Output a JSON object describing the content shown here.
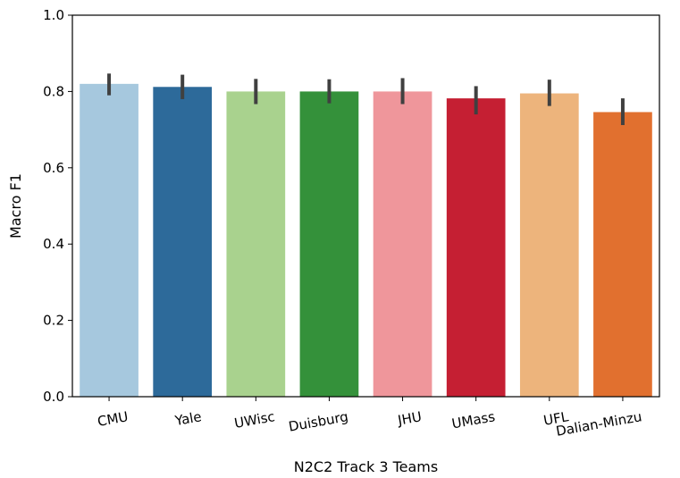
{
  "chart_data": {
    "type": "bar",
    "title": "",
    "xlabel": "N2C2 Track 3 Teams",
    "ylabel": "Macro F1",
    "ylim": [
      0,
      1.0
    ],
    "yticks": [
      "0.0",
      "0.2",
      "0.4",
      "0.6",
      "0.8",
      "1.0"
    ],
    "grid": false,
    "legend": "none",
    "categories": [
      "CMU",
      "Yale",
      "UWisc",
      "Duisburg",
      "JHU",
      "UMass",
      "UFL",
      "Dalian-Minzu"
    ],
    "values": [
      0.82,
      0.812,
      0.8,
      0.8,
      0.8,
      0.782,
      0.795,
      0.746
    ],
    "error_low": [
      0.79,
      0.78,
      0.767,
      0.769,
      0.767,
      0.74,
      0.762,
      0.712
    ],
    "error_high": [
      0.847,
      0.844,
      0.833,
      0.832,
      0.835,
      0.814,
      0.831,
      0.782
    ],
    "colors": [
      "#a6c8de",
      "#2d6a9a",
      "#a9d28e",
      "#34913a",
      "#ef969b",
      "#c51f33",
      "#edb47c",
      "#e1702f"
    ],
    "error_color": "#404040"
  }
}
